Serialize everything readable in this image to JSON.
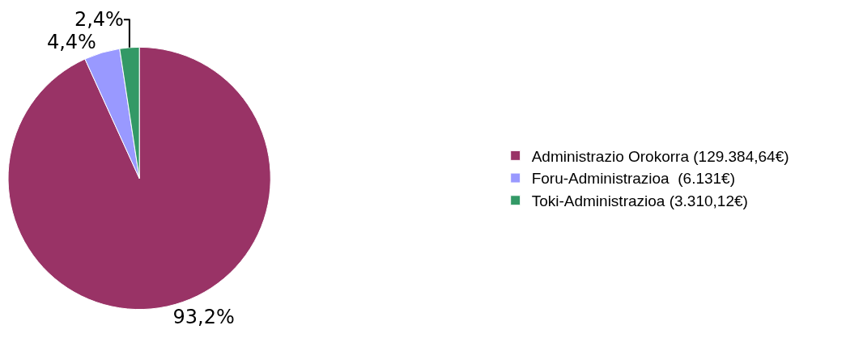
{
  "chart_data": {
    "type": "pie",
    "categories": [
      "Administrazio Orokorra (129.384,64€)",
      "Foru-Administrazioa  (6.131€)",
      "Toki-Administrazioa (3.310,12€)"
    ],
    "values": [
      93.2,
      4.4,
      2.4
    ],
    "value_labels": [
      "93,2%",
      "4,4%",
      "2,4%"
    ],
    "colors": [
      "#993366",
      "#9999ff",
      "#339966"
    ],
    "legend": "right"
  }
}
